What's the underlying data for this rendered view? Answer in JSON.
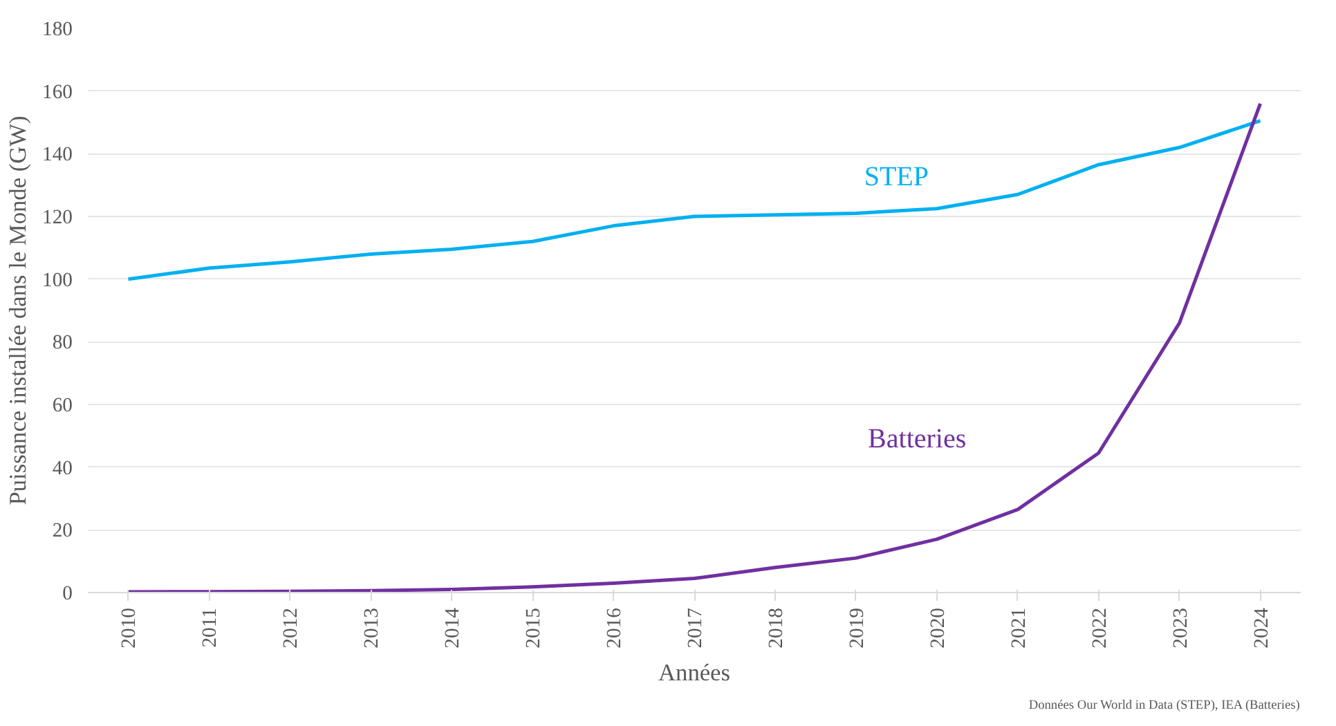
{
  "chart_data": {
    "type": "line",
    "xlabel": "Années",
    "ylabel": "Puissance installée dans le Monde (GW)",
    "categories": [
      "2010",
      "2011",
      "2012",
      "2013",
      "2014",
      "2015",
      "2016",
      "2017",
      "2018",
      "2019",
      "2020",
      "2021",
      "2022",
      "2023",
      "2024"
    ],
    "series": [
      {
        "name": "STEP",
        "color": "#00b0f0",
        "values": [
          100,
          103.5,
          105.5,
          108,
          109.5,
          112,
          117,
          120,
          120.5,
          121,
          122.5,
          127,
          136.5,
          142,
          150.5
        ]
      },
      {
        "name": "Batteries",
        "color": "#7030a0",
        "values": [
          0.2,
          0.3,
          0.4,
          0.6,
          1,
          1.8,
          3,
          4.5,
          8,
          11,
          17,
          26.5,
          44.5,
          86,
          156
        ]
      }
    ],
    "ylim": [
      0,
      180
    ],
    "yticks": [
      0,
      20,
      40,
      60,
      80,
      100,
      120,
      140,
      160,
      180
    ],
    "grid": "y",
    "annotations": [
      "Données Our World in Data (STEP), IEA (Batteries)"
    ]
  }
}
